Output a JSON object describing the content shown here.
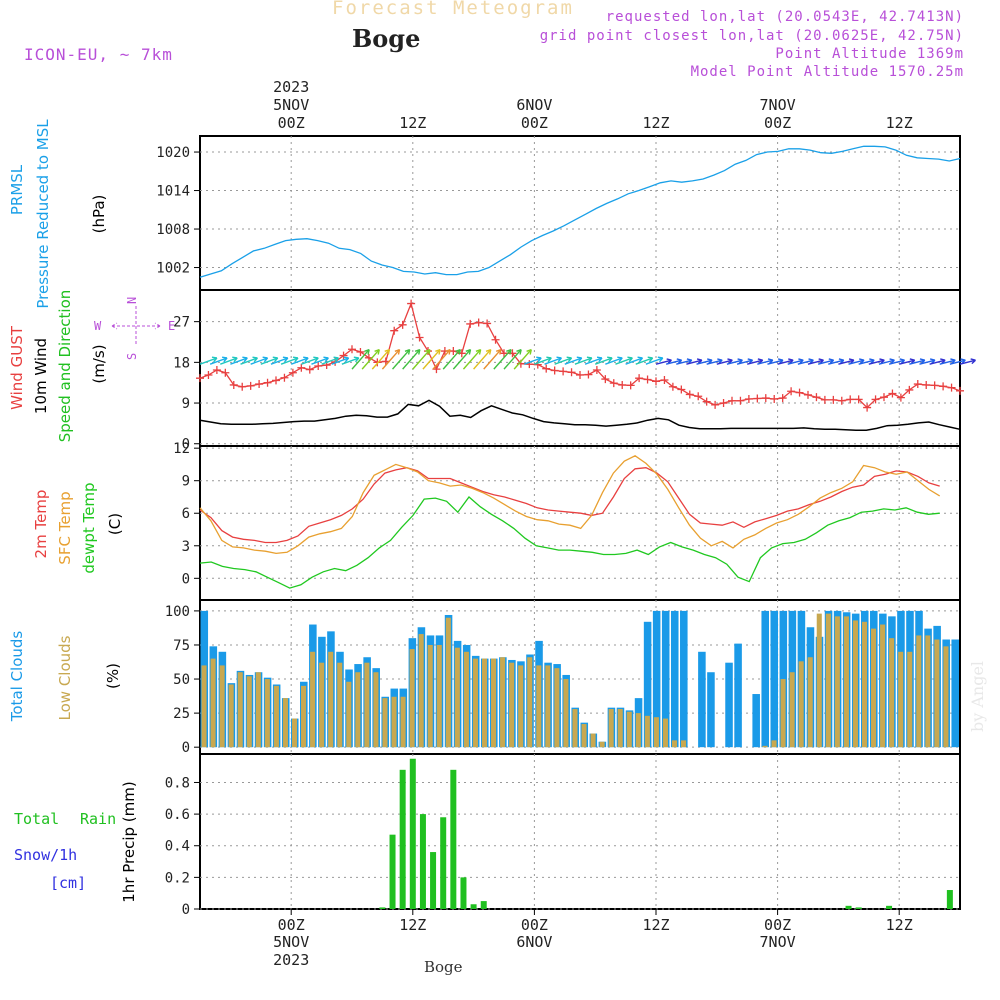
{
  "header": {
    "product": "Forecast Meteogram",
    "station": "Boge",
    "model": "ICON-EU, ~ 7km",
    "requested": "requested lon,lat (20.0543E, 42.7413N)",
    "grid_point": "grid point closest lon,lat (20.0625E, 42.75N)",
    "point_alt": "Point Altitude 1369m",
    "model_alt": "Model Point Altitude 1570.25m",
    "footer": "Boge",
    "watermark": "by Angel"
  },
  "time_axis": {
    "top_year": "2023",
    "bottom_year": "2023",
    "days": [
      "5NOV",
      "6NOV",
      "7NOV"
    ],
    "ticks": [
      "00Z",
      "12Z",
      "00Z",
      "12Z",
      "00Z",
      "12Z"
    ]
  },
  "panels": {
    "pressure": {
      "label1": "PRMSL",
      "label2": "Pressure Reduced to MSL",
      "unit": "(hPa)",
      "yticks": [
        "1020",
        "1014",
        "1008",
        "1002"
      ]
    },
    "wind": {
      "label1": "Wind GUST",
      "label2": "10m Wind",
      "label3": "Speed and Direction",
      "unit": "(m/s)",
      "yticks": [
        "27",
        "18",
        "9",
        "0"
      ],
      "compass_w": "W",
      "compass_e": "E",
      "compass_n": "N",
      "compass_s": "S"
    },
    "temp": {
      "label1": "2m Temp",
      "label2": "SFC Temp",
      "label3": "dewpt Temp",
      "unit": "(C)",
      "yticks": [
        "12",
        "9",
        "6",
        "3",
        "0"
      ]
    },
    "clouds": {
      "label1": "Total Clouds",
      "label2": "Low Clouds",
      "unit": "(%)",
      "yticks": [
        "100",
        "75",
        "50",
        "25",
        "0"
      ]
    },
    "precip": {
      "label1": "Total",
      "label2": "Rain",
      "label3": "Snow/1h",
      "label4": "[cm]",
      "unit": "1hr Precip (mm)",
      "yticks": [
        "0.8",
        "0.6",
        "0.4",
        "0.2",
        "0"
      ]
    }
  },
  "colors": {
    "pressure": "#1aa0e8",
    "gust": "#e84040",
    "wind": "#000000",
    "t2m": "#e84040",
    "sfc": "#e8a030",
    "dewpt": "#20c820",
    "total_clouds": "#1a9ae8",
    "low_clouds": "#c8a850",
    "rain": "#20c020",
    "snow": "#3030e0",
    "purple": "#b84fd8"
  },
  "chart_data": {
    "type": "line",
    "x_hours_from_5NOV_00Z": [
      -9,
      -8,
      -7,
      -6,
      -5,
      -4,
      -3,
      -2,
      -1,
      0,
      1,
      2,
      3,
      4,
      5,
      6,
      7,
      8,
      9,
      10,
      11,
      12,
      13,
      14,
      15,
      16,
      17,
      18,
      19,
      20,
      21,
      22,
      23,
      24,
      25,
      26,
      27,
      28,
      29,
      30,
      31,
      32,
      33,
      34,
      35,
      36,
      37,
      38,
      39,
      40,
      41,
      42,
      43,
      44,
      45,
      46,
      47,
      48,
      49,
      50,
      51,
      52,
      53,
      54,
      55,
      56,
      57,
      58,
      59,
      60,
      61,
      62,
      63,
      64,
      65,
      66
    ],
    "pressure_hPa": [
      1000.5,
      1001,
      1001.5,
      1002.6,
      1003.6,
      1004.6,
      1005,
      1005.6,
      1006.2,
      1006.4,
      1006.5,
      1006.2,
      1005.8,
      1005,
      1004.8,
      1004.2,
      1003,
      1002.4,
      1002,
      1001.4,
      1001.3,
      1001,
      1001.2,
      1000.9,
      1000.9,
      1001.3,
      1001.4,
      1002,
      1003,
      1004,
      1005.2,
      1006.2,
      1007,
      1007.7,
      1008.5,
      1009.4,
      1010.3,
      1011.2,
      1012,
      1012.7,
      1013.5,
      1014,
      1014.6,
      1015.2,
      1015.5,
      1015.3,
      1015.5,
      1015.8,
      1016.4,
      1017.1,
      1018.1,
      1018.7,
      1019.6,
      1020,
      1020.1,
      1020.5,
      1020.5,
      1020.3,
      1019.9,
      1019.8,
      1020.1,
      1020.5,
      1020.9,
      1020.9,
      1020.8,
      1020.3,
      1019.5,
      1019.1,
      1019,
      1018.9,
      1018.6,
      1019
    ],
    "gust_ms": [
      14.5,
      15.2,
      16.3,
      15.7,
      13,
      12.6,
      12.8,
      13.2,
      13.5,
      14,
      14.6,
      15.7,
      16.8,
      16.4,
      17.2,
      17.4,
      18.1,
      19.5,
      20.9,
      20.3,
      19,
      18,
      18.2,
      25,
      26.3,
      31,
      23.5,
      20.5,
      16.5,
      20.5,
      20.5,
      20,
      26.5,
      26.8,
      26.6,
      23,
      20,
      20,
      17.7,
      17.6,
      17.5,
      16.6,
      16.2,
      16,
      15.8,
      15.2,
      15.3,
      16.3,
      14.3,
      13.4,
      13,
      12.9,
      14.5,
      14.2,
      13.8,
      14.1,
      12.6,
      12,
      10.9,
      10.5,
      9.3,
      8.6,
      9,
      9.5,
      9.5,
      9.9,
      10,
      10.1,
      9.9,
      10.1,
      11.6,
      11.3,
      10.8,
      10.3,
      9.7,
      9.7,
      9.5,
      9.8,
      9.8,
      8,
      9.8,
      10.3,
      11.1,
      10.2,
      11.9,
      13.2,
      13,
      12.9,
      12.7,
      12.4,
      11.7
    ],
    "wind10m_ms": [
      5.2,
      4.8,
      4.4,
      4.3,
      4.3,
      4.3,
      4.4,
      4.5,
      4.7,
      4.9,
      5,
      5,
      5.3,
      5.6,
      6.1,
      6.3,
      6.2,
      5.9,
      5.9,
      6.6,
      8.7,
      8.4,
      9.6,
      8.3,
      6.1,
      6.3,
      5.8,
      7.3,
      8.4,
      7.6,
      6.8,
      6.4,
      5.6,
      4.9,
      4.6,
      4.4,
      4.2,
      4.2,
      4.1,
      3.9,
      4.1,
      4.3,
      4.6,
      5.2,
      5.6,
      5.3,
      4.1,
      3.6,
      3.3,
      3.3,
      3.3,
      3.4,
      3.4,
      3.4,
      3.4,
      3.4,
      3.4,
      3.4,
      3.5,
      3.3,
      3.2,
      3.2,
      3.1,
      3,
      3,
      3.4,
      4,
      4.1,
      4.3,
      4.6,
      4.8,
      4.2,
      3.7,
      3.2
    ],
    "t2m_C": [
      6.3,
      5.6,
      4.4,
      3.8,
      3.6,
      3.5,
      3.3,
      3.3,
      3.5,
      3.9,
      4.8,
      5.1,
      5.4,
      5.8,
      6.4,
      7.3,
      8.7,
      9.7,
      10,
      10.2,
      9.9,
      9.2,
      9.2,
      9.2,
      8.8,
      8.4,
      8,
      7.7,
      7.5,
      7.2,
      6.9,
      6.5,
      6.3,
      6.2,
      6.1,
      6,
      5.8,
      6,
      7.5,
      9.2,
      10.1,
      10.2,
      9.7,
      8.9,
      7.4,
      5.9,
      5.1,
      5,
      4.9,
      5.2,
      4.7,
      5.2,
      5.5,
      5.8,
      6.2,
      6.4,
      6.8,
      7.1,
      7.5,
      8,
      8.4,
      8.6,
      9.4,
      9.6,
      9.9,
      9.8,
      9.4,
      8.8,
      8.5
    ],
    "sfc_C": [
      6.5,
      5.3,
      3.5,
      2.9,
      2.8,
      2.6,
      2.5,
      2.3,
      2.4,
      3,
      3.8,
      4.1,
      4.3,
      4.6,
      5.7,
      7.9,
      9.5,
      10,
      10.5,
      10.2,
      9.8,
      9,
      8.8,
      8.5,
      8.6,
      8.3,
      7.9,
      7.4,
      6.8,
      6.2,
      5.7,
      5.4,
      5.3,
      5,
      4.9,
      4.6,
      5.8,
      7.9,
      9.7,
      10.8,
      11.3,
      10.6,
      9.6,
      8.2,
      6.5,
      4.9,
      3.7,
      3,
      3.4,
      2.8,
      3.6,
      4,
      4.6,
      5.1,
      5.4,
      5.9,
      6.6,
      7.4,
      7.9,
      8.3,
      8.9,
      10.4,
      10.2,
      9.8,
      9.6,
      9.8,
      9,
      8.2,
      7.6
    ],
    "dewpt_C": [
      1.4,
      1.5,
      1.1,
      0.9,
      0.8,
      0.6,
      0.1,
      -0.4,
      -0.9,
      -0.6,
      0.1,
      0.6,
      0.9,
      0.7,
      1.2,
      1.9,
      2.8,
      3.5,
      4.7,
      5.8,
      7.3,
      7.4,
      7.1,
      6.1,
      7.5,
      6.6,
      5.9,
      5.3,
      4.6,
      3.7,
      3,
      2.8,
      2.6,
      2.6,
      2.5,
      2.4,
      2.2,
      2.2,
      2.3,
      2.6,
      2.2,
      2.9,
      3.3,
      2.9,
      2.6,
      2.2,
      1.9,
      1.3,
      0.1,
      -0.3,
      1.9,
      2.8,
      3.2,
      3.3,
      3.6,
      4.2,
      4.9,
      5.3,
      5.6,
      6.1,
      6.2,
      6.4,
      6.3,
      6.5,
      6.1,
      5.9,
      6
    ],
    "total_clouds_pct": [
      100,
      74,
      70,
      47,
      56,
      53,
      55,
      51,
      46,
      36,
      21,
      48,
      90,
      81,
      85,
      70,
      57,
      61,
      66,
      58,
      37,
      43,
      43,
      80,
      88,
      82,
      82,
      97,
      78,
      75,
      67,
      65,
      65,
      66,
      64,
      63,
      68,
      78,
      62,
      61,
      53,
      29,
      18,
      10,
      4,
      29,
      29,
      27,
      36,
      92,
      100,
      100,
      100,
      100,
      0,
      70,
      55,
      0,
      62,
      76,
      0,
      39,
      100,
      100,
      100,
      100,
      100,
      88,
      81,
      100,
      100,
      99,
      98,
      100,
      100,
      98,
      96,
      100,
      100,
      100,
      87,
      89,
      79,
      79
    ],
    "low_clouds_pct": [
      60,
      65,
      60,
      46,
      55,
      52,
      55,
      50,
      45,
      36,
      21,
      45,
      70,
      62,
      70,
      62,
      48,
      55,
      62,
      55,
      36,
      37,
      37,
      72,
      83,
      75,
      75,
      95,
      73,
      70,
      65,
      65,
      65,
      66,
      62,
      60,
      66,
      60,
      60,
      58,
      50,
      28,
      17,
      10,
      4,
      28,
      28,
      26,
      25,
      23,
      22,
      21,
      5,
      5,
      0,
      0,
      0,
      0,
      0,
      0,
      0,
      0,
      1,
      5,
      50,
      55,
      63,
      66,
      98,
      98,
      96,
      96,
      93,
      92,
      87,
      90,
      80,
      70,
      70,
      82,
      82,
      79,
      74
    ]
  }
}
